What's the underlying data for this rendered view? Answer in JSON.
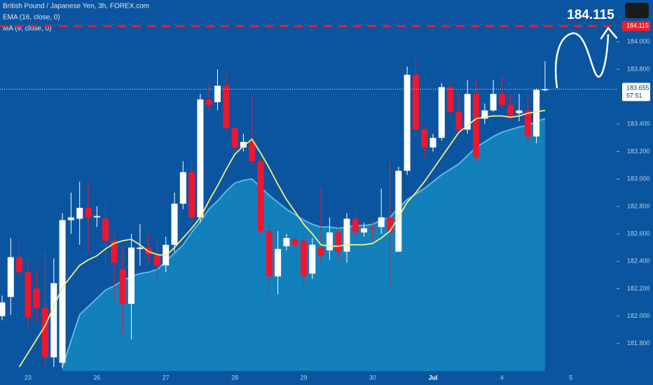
{
  "chart_data": {
    "type": "candlestick",
    "title": "British Pound / Japanese Yen, 3h, FOREX.com",
    "categories": [
      null,
      null,
      null,
      "23",
      null,
      null,
      null,
      null,
      null,
      null,
      null,
      "26",
      null,
      null,
      null,
      null,
      null,
      null,
      null,
      "27",
      null,
      null,
      null,
      null,
      null,
      null,
      null,
      "28",
      null,
      null,
      null,
      null,
      null,
      null,
      null,
      "29",
      null,
      null,
      null,
      null,
      null,
      null,
      null,
      "30",
      null,
      null,
      null,
      null,
      null,
      null,
      "Jul",
      null,
      null,
      null,
      null,
      null,
      null,
      null,
      "4",
      null,
      null,
      null,
      null,
      null,
      null,
      null,
      "5"
    ],
    "open": [
      182.0,
      182.14,
      182.43,
      182.32,
      182.2,
      182.06,
      181.7,
      181.66,
      182.7,
      182.71,
      182.79,
      182.72,
      182.71,
      182.55,
      182.34,
      182.09,
      182.49,
      182.5,
      182.45,
      182.37,
      182.52,
      182.82,
      183.05,
      182.72,
      183.58,
      183.56,
      183.68,
      183.37,
      183.23,
      183.27,
      183.13,
      182.62,
      182.29,
      182.51,
      182.56,
      182.55,
      182.31,
      182.5,
      182.48,
      182.61,
      182.47,
      182.71,
      182.61,
      182.64,
      182.65,
      182.72,
      182.47,
      183.06,
      183.76,
      183.36,
      183.23,
      183.3,
      183.67,
      183.49,
      183.36,
      183.62,
      183.44,
      183.5,
      183.62,
      183.54,
      183.48,
      183.5,
      183.31,
      183.65,
      null,
      null,
      null
    ],
    "high": [
      182.15,
      182.57,
      182.55,
      182.4,
      182.34,
      182.47,
      182.42,
      182.75,
      182.9,
      182.98,
      182.98,
      182.8,
      182.83,
      182.6,
      182.5,
      182.6,
      182.67,
      182.6,
      182.57,
      182.58,
      182.9,
      183.13,
      183.13,
      183.62,
      183.7,
      183.8,
      183.77,
      183.38,
      183.33,
      183.6,
      183.15,
      182.67,
      182.62,
      182.6,
      182.58,
      182.6,
      182.57,
      182.93,
      182.72,
      182.66,
      182.75,
      182.75,
      182.68,
      182.7,
      182.93,
      183.13,
      183.09,
      183.82,
      183.87,
      183.39,
      183.33,
      183.7,
      183.7,
      183.62,
      183.72,
      183.72,
      183.55,
      183.72,
      183.75,
      183.62,
      183.62,
      183.62,
      183.66,
      183.86,
      null,
      null,
      null
    ],
    "low": [
      181.97,
      182.01,
      182.28,
      181.9,
      181.96,
      181.6,
      181.63,
      181.62,
      182.6,
      182.52,
      182.47,
      182.65,
      182.37,
      182.11,
      181.86,
      181.83,
      182.37,
      182.38,
      182.24,
      182.32,
      182.47,
      182.78,
      182.68,
      182.68,
      183.49,
      183.5,
      183.36,
      183.2,
      183.2,
      183.1,
      182.6,
      182.16,
      182.16,
      182.48,
      182.49,
      182.21,
      182.27,
      182.39,
      182.41,
      182.4,
      182.39,
      182.57,
      182.58,
      182.55,
      182.6,
      182.21,
      182.47,
      183.03,
      183.33,
      183.16,
      183.2,
      183.28,
      183.46,
      183.33,
      183.33,
      183.12,
      183.4,
      183.49,
      183.52,
      183.44,
      183.42,
      183.26,
      183.26,
      183.64,
      null,
      null,
      null
    ],
    "close": [
      182.1,
      182.43,
      182.32,
      181.99,
      182.06,
      181.7,
      182.24,
      182.7,
      182.72,
      182.79,
      182.72,
      182.73,
      182.55,
      182.39,
      182.09,
      182.5,
      182.5,
      182.45,
      182.37,
      182.52,
      182.82,
      183.05,
      182.72,
      183.58,
      183.54,
      183.68,
      183.37,
      183.23,
      183.27,
      183.13,
      182.62,
      182.29,
      182.49,
      182.57,
      182.52,
      182.29,
      182.52,
      182.44,
      182.61,
      182.47,
      182.71,
      182.61,
      182.64,
      182.63,
      182.72,
      182.62,
      183.06,
      183.76,
      183.36,
      183.23,
      183.3,
      183.67,
      183.49,
      183.36,
      183.62,
      183.16,
      183.5,
      183.62,
      183.54,
      183.46,
      183.5,
      183.31,
      183.65,
      183.655,
      null,
      null,
      null
    ],
    "up_color": "#ffffff",
    "down_color": "#f0162f",
    "series": [
      {
        "name": "EMA (16, close, 0)",
        "color": "#5cb8df",
        "values": [
          null,
          null,
          null,
          null,
          null,
          null,
          null,
          181.63,
          181.82,
          182.01,
          182.07,
          182.13,
          182.19,
          182.22,
          182.26,
          182.29,
          182.31,
          182.32,
          182.34,
          182.4,
          182.46,
          182.52,
          182.61,
          182.69,
          182.78,
          182.84,
          182.91,
          182.97,
          182.99,
          183.0,
          182.94,
          182.88,
          182.83,
          182.78,
          182.74,
          182.7,
          182.67,
          182.65,
          182.65,
          182.64,
          182.65,
          182.66,
          182.66,
          182.67,
          182.7,
          182.72,
          182.79,
          182.85,
          182.89,
          182.93,
          182.98,
          183.03,
          183.07,
          183.11,
          183.17,
          183.23,
          183.27,
          183.31,
          183.34,
          183.36,
          183.38,
          183.39,
          183.42,
          183.44,
          null,
          null,
          null
        ]
      },
      {
        "name": "MA (9, close, 0)",
        "color": "#f2f07a",
        "values": [
          null,
          null,
          181.63,
          181.73,
          181.83,
          181.93,
          182.07,
          182.21,
          182.29,
          182.37,
          182.41,
          182.44,
          182.49,
          182.53,
          182.55,
          182.56,
          182.52,
          182.47,
          182.45,
          182.44,
          182.5,
          182.57,
          182.64,
          182.72,
          182.84,
          182.95,
          183.07,
          183.18,
          183.24,
          183.29,
          183.19,
          183.08,
          182.96,
          182.85,
          182.76,
          182.67,
          182.6,
          182.52,
          182.51,
          182.51,
          182.52,
          182.52,
          182.52,
          182.53,
          182.57,
          182.62,
          182.72,
          182.83,
          182.9,
          182.98,
          183.07,
          183.16,
          183.25,
          183.34,
          183.39,
          183.44,
          183.45,
          183.46,
          183.46,
          183.45,
          183.46,
          183.48,
          183.49,
          183.5,
          null,
          null,
          null
        ]
      }
    ],
    "ylim": [
      181.6,
      184.3
    ],
    "yticks": [
      {
        "value": 181.8,
        "label": "181.800"
      },
      {
        "value": 182.0,
        "label": "182.000"
      },
      {
        "value": 182.2,
        "label": "182.200"
      },
      {
        "value": 182.4,
        "label": "182.400"
      },
      {
        "value": 182.6,
        "label": "182.600"
      },
      {
        "value": 182.8,
        "label": "182.800"
      },
      {
        "value": 183.0,
        "label": "183.000"
      },
      {
        "value": 183.2,
        "label": "183.200"
      },
      {
        "value": 183.4,
        "label": "183.400"
      },
      {
        "value": 183.8,
        "label": "183.800"
      },
      {
        "value": 184.0,
        "label": "184.000"
      }
    ],
    "last_price": {
      "value": 183.655,
      "label": "183.655"
    },
    "countdown": "57:51",
    "target": {
      "value": 184.115,
      "label": "184.115"
    }
  }
}
